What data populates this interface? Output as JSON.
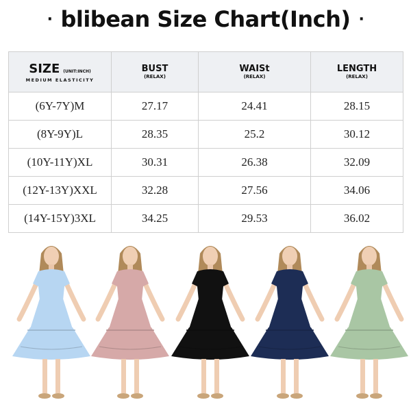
{
  "title": "blibean Size Chart(Inch)",
  "title_dot": "·",
  "header": {
    "size_label": "SIZE",
    "unit_label": "(UNIT:INCH)",
    "elasticity": "MEDIUM ELASTICITY",
    "columns": [
      {
        "label": "BUST",
        "sub": "(RELAX)"
      },
      {
        "label": "WAISt",
        "sub": "(RELAX)"
      },
      {
        "label": "LENGTH",
        "sub": "(RELAX)"
      }
    ]
  },
  "rows": [
    {
      "size": "(6Y-7Y)M",
      "bust": "27.17",
      "waist": "24.41",
      "length": "28.15"
    },
    {
      "size": "(8Y-9Y)L",
      "bust": "28.35",
      "waist": "25.2",
      "length": "30.12"
    },
    {
      "size": "(10Y-11Y)XL",
      "bust": "30.31",
      "waist": "26.38",
      "length": "32.09"
    },
    {
      "size": "(12Y-13Y)XXL",
      "bust": "32.28",
      "waist": "27.56",
      "length": "34.06"
    },
    {
      "size": "(14Y-15Y)3XL",
      "bust": "34.25",
      "waist": "29.53",
      "length": "36.02"
    }
  ],
  "dress_colors": [
    "#b7d6f2",
    "#d6a9a8",
    "#111111",
    "#1d2d55",
    "#a9c6a4"
  ]
}
